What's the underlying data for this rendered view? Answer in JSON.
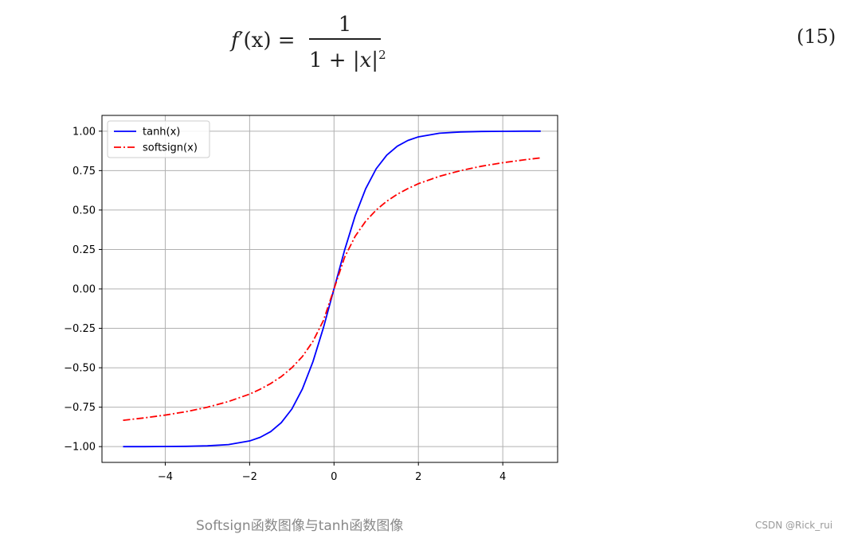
{
  "equation": {
    "lhs_fn": "f",
    "lhs_rest": "′(x) =",
    "numerator": "1",
    "den_prefix": "1 + |",
    "den_var": "x",
    "den_suffix": "|",
    "den_exp": "2",
    "number": "(15)"
  },
  "chart_data": {
    "type": "line",
    "title": "",
    "xlabel": "",
    "ylabel": "",
    "xlim": [
      -5.5,
      5.3
    ],
    "ylim": [
      -1.1,
      1.1
    ],
    "x_ticks": [
      -4,
      -2,
      0,
      2,
      4
    ],
    "x_tick_labels": [
      "−4",
      "−2",
      "0",
      "2",
      "4"
    ],
    "y_ticks": [
      1.0,
      0.75,
      0.5,
      0.25,
      0.0,
      -0.25,
      -0.5,
      -0.75,
      -1.0
    ],
    "y_tick_labels": [
      "1.00",
      "0.75",
      "0.50",
      "0.25",
      "0.00",
      "−0.25",
      "−0.50",
      "−0.75",
      "−1.00"
    ],
    "grid": true,
    "legend_position": "top-left",
    "series": [
      {
        "name": "tanh(x)",
        "color": "#0000ff",
        "style": "solid",
        "x": [
          -5,
          -4.5,
          -4,
          -3.5,
          -3,
          -2.5,
          -2,
          -1.75,
          -1.5,
          -1.25,
          -1,
          -0.75,
          -0.5,
          -0.25,
          0,
          0.25,
          0.5,
          0.75,
          1,
          1.25,
          1.5,
          1.75,
          2,
          2.5,
          3,
          3.5,
          4,
          4.5,
          4.9
        ],
        "y": [
          -1.0,
          -1.0,
          -0.999,
          -0.998,
          -0.995,
          -0.987,
          -0.964,
          -0.941,
          -0.905,
          -0.848,
          -0.762,
          -0.635,
          -0.462,
          -0.245,
          0.0,
          0.245,
          0.462,
          0.635,
          0.762,
          0.848,
          0.905,
          0.941,
          0.964,
          0.987,
          0.995,
          0.998,
          0.999,
          1.0,
          1.0
        ]
      },
      {
        "name": "softsign(x)",
        "color": "#ff0000",
        "style": "dashdot",
        "x": [
          -5,
          -4.5,
          -4,
          -3.5,
          -3,
          -2.5,
          -2,
          -1.75,
          -1.5,
          -1.25,
          -1,
          -0.75,
          -0.5,
          -0.25,
          0,
          0.25,
          0.5,
          0.75,
          1,
          1.25,
          1.5,
          1.75,
          2,
          2.5,
          3,
          3.5,
          4,
          4.5,
          4.9
        ],
        "y": [
          -0.833,
          -0.818,
          -0.8,
          -0.778,
          -0.75,
          -0.714,
          -0.667,
          -0.636,
          -0.6,
          -0.556,
          -0.5,
          -0.429,
          -0.333,
          -0.2,
          0.0,
          0.2,
          0.333,
          0.429,
          0.5,
          0.556,
          0.6,
          0.636,
          0.667,
          0.714,
          0.75,
          0.778,
          0.8,
          0.818,
          0.831
        ]
      }
    ]
  },
  "caption": "Softsign函数图像与tanh函数图像",
  "watermark": "CSDN @Rick_rui"
}
